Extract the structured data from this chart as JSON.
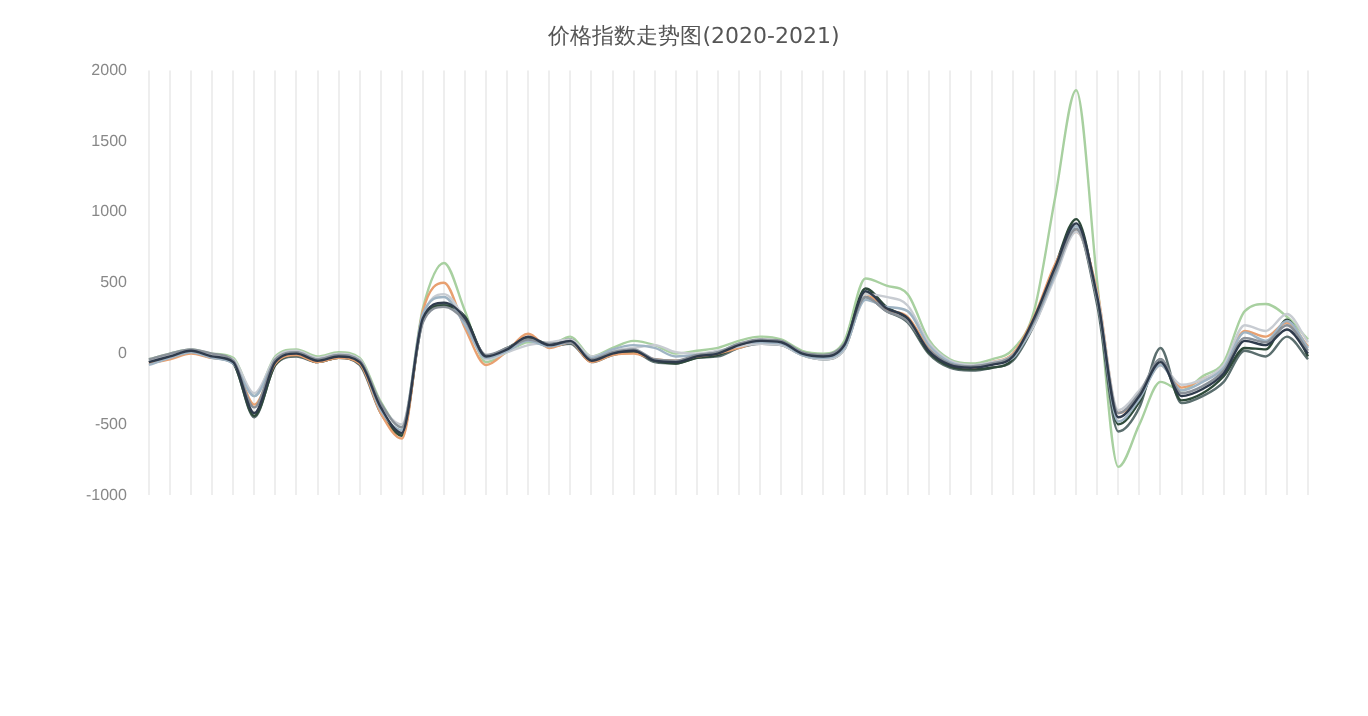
{
  "chart_data": {
    "type": "line",
    "title": "价格指数走势图(2020-2021)",
    "categories": [
      null,
      null,
      null,
      null,
      null,
      null,
      null,
      null,
      null,
      null,
      null,
      null,
      null,
      null,
      null,
      null,
      null,
      null,
      null,
      null,
      null,
      null,
      null,
      null,
      null,
      null,
      null,
      null,
      null,
      null,
      null,
      null,
      null,
      null,
      null,
      null,
      null,
      null,
      null,
      null,
      null,
      null,
      null,
      null,
      null,
      null,
      null,
      null,
      null,
      null,
      null,
      null,
      null,
      null,
      null,
      null
    ],
    "ylim": [
      -1000,
      2000
    ],
    "yticks": [
      -1000,
      -500,
      0,
      500,
      1000,
      1500,
      2000
    ],
    "grid": "x",
    "marker": "none",
    "series": [
      {
        "color": "#2f3b4c",
        "values": [
          -60,
          -20,
          20,
          -20,
          -60,
          -420,
          -60,
          0,
          -50,
          -20,
          -60,
          -380,
          -560,
          250,
          360,
          250,
          -20,
          30,
          120,
          60,
          90,
          -50,
          0,
          20,
          -50,
          -60,
          -20,
          0,
          60,
          90,
          80,
          0,
          -20,
          60,
          440,
          320,
          250,
          20,
          -80,
          -100,
          -80,
          -20,
          250,
          610,
          920,
          400,
          -450,
          -300,
          -60,
          -300,
          -250,
          -140,
          90,
          60,
          170,
          0
        ]
      },
      {
        "color": "#8a9199",
        "values": [
          -40,
          0,
          30,
          0,
          -50,
          -380,
          -40,
          10,
          -40,
          -10,
          -50,
          -350,
          -520,
          220,
          330,
          230,
          -10,
          40,
          100,
          70,
          80,
          -40,
          10,
          30,
          -40,
          -50,
          -10,
          10,
          70,
          100,
          90,
          10,
          -10,
          70,
          400,
          300,
          230,
          30,
          -70,
          -90,
          -70,
          -10,
          230,
          580,
          880,
          380,
          -420,
          -280,
          -40,
          -280,
          -230,
          -120,
          110,
          80,
          200,
          20
        ]
      },
      {
        "color": "#9fb4c4",
        "values": [
          -80,
          -30,
          10,
          -30,
          -70,
          -300,
          -50,
          10,
          -40,
          -10,
          -50,
          -400,
          -540,
          280,
          400,
          200,
          -30,
          20,
          90,
          50,
          80,
          -30,
          30,
          60,
          40,
          -20,
          -10,
          10,
          70,
          80,
          70,
          -10,
          -30,
          40,
          380,
          330,
          300,
          60,
          -60,
          -90,
          -70,
          -30,
          220,
          560,
          900,
          380,
          -480,
          -320,
          -80,
          -260,
          -200,
          -100,
          150,
          90,
          230,
          40
        ]
      },
      {
        "color": "#c8ccd2",
        "values": [
          -50,
          -10,
          30,
          -10,
          -40,
          -280,
          -30,
          20,
          -30,
          0,
          -40,
          -360,
          -500,
          260,
          420,
          240,
          -40,
          10,
          60,
          80,
          100,
          -20,
          20,
          40,
          60,
          10,
          0,
          20,
          50,
          70,
          60,
          -10,
          -40,
          30,
          420,
          400,
          340,
          80,
          -50,
          -80,
          -60,
          -10,
          200,
          540,
          860,
          420,
          -400,
          -260,
          -80,
          -220,
          -180,
          -80,
          200,
          160,
          280,
          80
        ]
      },
      {
        "color": "#e8a070",
        "values": [
          -70,
          -40,
          0,
          -30,
          -60,
          -360,
          -70,
          -10,
          -60,
          -30,
          -70,
          -420,
          -600,
          300,
          500,
          180,
          -80,
          20,
          140,
          40,
          80,
          -60,
          -10,
          0,
          -40,
          -50,
          -20,
          0,
          40,
          80,
          70,
          0,
          -20,
          50,
          420,
          310,
          260,
          40,
          -70,
          -100,
          -60,
          0,
          260,
          630,
          860,
          440,
          -420,
          -300,
          -80,
          -240,
          -180,
          -100,
          160,
          120,
          220,
          50
        ]
      },
      {
        "color": "#2e4a3a",
        "values": [
          -60,
          -20,
          10,
          -20,
          -70,
          -440,
          -80,
          -10,
          -60,
          -30,
          -70,
          -400,
          -580,
          240,
          340,
          260,
          -20,
          40,
          110,
          70,
          100,
          -50,
          0,
          10,
          -50,
          -70,
          -30,
          -10,
          50,
          90,
          80,
          0,
          -30,
          50,
          460,
          330,
          240,
          10,
          -90,
          -110,
          -100,
          -40,
          240,
          620,
          950,
          380,
          -500,
          -340,
          -40,
          -330,
          -280,
          -160,
          40,
          30,
          240,
          -20
        ]
      },
      {
        "color": "#5b6e6e",
        "values": [
          -50,
          -30,
          10,
          -30,
          -70,
          -450,
          -80,
          -20,
          -60,
          -30,
          -80,
          -420,
          -570,
          230,
          350,
          260,
          -30,
          20,
          100,
          50,
          70,
          -60,
          -10,
          10,
          -60,
          -70,
          -30,
          -20,
          40,
          70,
          60,
          -10,
          -40,
          30,
          400,
          300,
          220,
          0,
          -100,
          -120,
          -100,
          -50,
          200,
          560,
          880,
          340,
          -550,
          -380,
          40,
          -350,
          -300,
          -200,
          20,
          -20,
          120,
          -40
        ]
      },
      {
        "color": "#a8d0a0",
        "values": [
          -40,
          0,
          30,
          0,
          -30,
          -300,
          -20,
          30,
          -20,
          10,
          -30,
          -340,
          -520,
          320,
          640,
          300,
          -60,
          10,
          80,
          60,
          120,
          -20,
          40,
          90,
          60,
          0,
          20,
          40,
          90,
          120,
          100,
          20,
          0,
          90,
          530,
          480,
          420,
          100,
          -40,
          -70,
          -40,
          30,
          300,
          1100,
          1860,
          500,
          -800,
          -500,
          -200,
          -260,
          -160,
          -60,
          300,
          350,
          260,
          100
        ]
      }
    ]
  }
}
